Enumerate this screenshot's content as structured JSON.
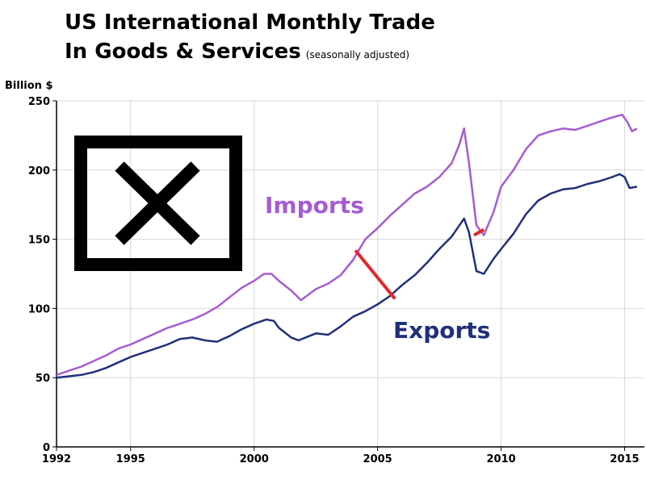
{
  "title_line1": "US International Monthly Trade",
  "title_line2": "In Goods & Services",
  "subtitle": "(seasonally adjusted)",
  "colors": {
    "imports": "#A55CD2",
    "exports": "#21307A",
    "gap": "#E5262D",
    "grid": "#D8D8D8",
    "axis": "#000000"
  },
  "icons": {
    "logo": "boxed-x-logo"
  },
  "chart_data": {
    "type": "line",
    "ylabel": "Billion $",
    "xlabel": "",
    "xlim": [
      1992,
      2015.8
    ],
    "ylim": [
      0,
      250
    ],
    "x_ticks": [
      1992,
      1995,
      2000,
      2005,
      2010,
      2015
    ],
    "y_ticks": [
      0,
      50,
      100,
      150,
      200,
      250
    ],
    "grid": true,
    "series": [
      {
        "name": "Imports",
        "x": [
          1992,
          1992.5,
          1993,
          1993.5,
          1994,
          1994.5,
          1995,
          1995.5,
          1996,
          1996.5,
          1997,
          1997.5,
          1998,
          1998.5,
          1999,
          1999.5,
          2000,
          2000.4,
          2000.7,
          2001,
          2001.5,
          2001.9,
          2002.5,
          2003,
          2003.5,
          2004,
          2004.5,
          2005,
          2005.5,
          2006,
          2006.5,
          2007,
          2007.5,
          2008,
          2008.3,
          2008.5,
          2008.7,
          2009,
          2009.3,
          2009.7,
          2010,
          2010.5,
          2011,
          2011.5,
          2012,
          2012.5,
          2013,
          2013.5,
          2014,
          2014.5,
          2014.9,
          2015.1,
          2015.3,
          2015.5
        ],
        "values": [
          52,
          55,
          58,
          62,
          66,
          71,
          74,
          78,
          82,
          86,
          89,
          92,
          96,
          101,
          108,
          115,
          120,
          125,
          125,
          120,
          113,
          106,
          114,
          118,
          124,
          135,
          150,
          158,
          167,
          175,
          183,
          188,
          195,
          205,
          218,
          230,
          205,
          160,
          153,
          170,
          188,
          200,
          215,
          225,
          228,
          230,
          229,
          232,
          235,
          238,
          240,
          235,
          228,
          230
        ]
      },
      {
        "name": "Exports",
        "x": [
          1992,
          1992.5,
          1993,
          1993.5,
          1994,
          1994.5,
          1995,
          1995.5,
          1996,
          1996.5,
          1997,
          1997.5,
          1998,
          1998.5,
          1999,
          1999.5,
          2000,
          2000.5,
          2000.8,
          2001,
          2001.5,
          2001.8,
          2002.5,
          2003,
          2003.5,
          2004,
          2004.5,
          2005,
          2005.5,
          2006,
          2006.5,
          2007,
          2007.5,
          2008,
          2008.5,
          2008.7,
          2009,
          2009.3,
          2009.7,
          2010,
          2010.5,
          2011,
          2011.5,
          2012,
          2012.5,
          2013,
          2013.5,
          2014,
          2014.5,
          2014.8,
          2015,
          2015.2,
          2015.5
        ],
        "values": [
          50,
          51,
          52,
          54,
          57,
          61,
          65,
          68,
          71,
          74,
          78,
          79,
          77,
          76,
          80,
          85,
          89,
          92,
          91,
          86,
          79,
          77,
          82,
          81,
          87,
          94,
          98,
          103,
          109,
          117,
          124,
          133,
          143,
          152,
          165,
          155,
          127,
          125,
          136,
          143,
          154,
          168,
          178,
          183,
          186,
          187,
          190,
          192,
          195,
          197,
          195,
          187,
          188
        ]
      }
    ],
    "annotations": [
      {
        "type": "gap-line",
        "x1": 2004.1,
        "y1": 142,
        "x2": 2005.7,
        "y2": 107
      },
      {
        "type": "gap-line",
        "x1": 2008.9,
        "y1": 153,
        "x2": 2009.3,
        "y2": 157
      }
    ]
  }
}
